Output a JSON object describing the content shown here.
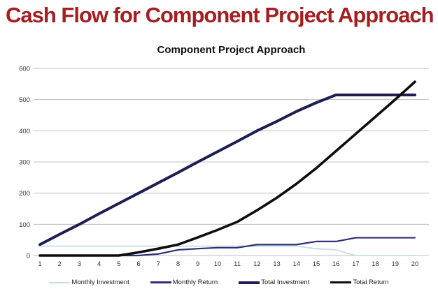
{
  "page": {
    "title": "Cash Flow for Component Project Approach",
    "title_color": "#A32022"
  },
  "chart_data": {
    "type": "line",
    "title": "Component Project Approach",
    "x": [
      1,
      2,
      3,
      4,
      5,
      6,
      7,
      8,
      9,
      10,
      11,
      12,
      13,
      14,
      15,
      16,
      17,
      18,
      19,
      20
    ],
    "series": [
      {
        "name": "Monthly Investment",
        "color": "#C5DDE8",
        "stroke_width": 1.8,
        "values": [
          30,
          30,
          30,
          30,
          30,
          30,
          30,
          30,
          30,
          30,
          30,
          30,
          30,
          30,
          22,
          18,
          0,
          0,
          0,
          0
        ]
      },
      {
        "name": "Monthly Return",
        "color": "#2E2E75",
        "stroke_width": 2.2,
        "values": [
          0,
          0,
          0,
          0,
          0,
          0,
          5,
          18,
          22,
          25,
          25,
          35,
          35,
          35,
          45,
          45,
          57,
          57,
          57,
          57
        ]
      },
      {
        "name": "Total Investment",
        "color": "#1E1E50",
        "stroke_width": 4,
        "values": [
          35,
          68,
          100,
          134,
          167,
          200,
          233,
          266,
          300,
          333,
          366,
          400,
          430,
          462,
          490,
          515,
          515,
          515,
          515,
          515
        ]
      },
      {
        "name": "Total Return",
        "color": "#0D0D0D",
        "stroke_width": 3.6,
        "values": [
          0,
          0,
          0,
          0,
          0,
          10,
          22,
          35,
          58,
          82,
          108,
          145,
          185,
          230,
          280,
          335,
          390,
          445,
          500,
          557
        ]
      }
    ],
    "xlabel": "",
    "ylabel": "",
    "ylim": [
      0,
      600
    ],
    "ytick_step": 100,
    "yticks": [
      0,
      100,
      200,
      300,
      400,
      500,
      600
    ],
    "grid": true,
    "gridline_color": "#BFBFBF",
    "tick_label_color": "#333333",
    "legend_position": "bottom"
  }
}
